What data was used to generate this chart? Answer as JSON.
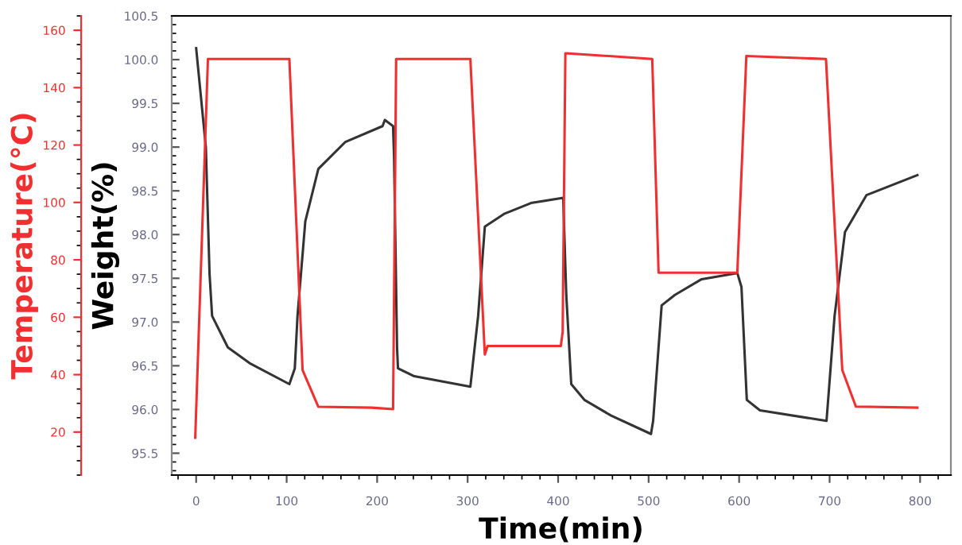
{
  "chart_data": {
    "type": "line",
    "xlabel": "Time(min)",
    "ylabel": "Weight(%)",
    "y2label": "Temperature(°C)",
    "xlim": [
      -27,
      834
    ],
    "xticks": [
      0,
      100,
      200,
      300,
      400,
      500,
      600,
      700,
      800
    ],
    "ylim": [
      95.25,
      100.5
    ],
    "yticks": [
      {
        "value": 95.5,
        "label": "95.5"
      },
      {
        "value": 96.0,
        "label": "96.0"
      },
      {
        "value": 96.5,
        "label": "96.5"
      },
      {
        "value": 97.0,
        "label": "97.0"
      },
      97.5,
      {
        "value": 98.0,
        "label": "98.0"
      },
      98.5,
      {
        "value": 99.0,
        "label": "99.0"
      },
      {
        "value": 99.5,
        "label": "99.5"
      },
      {
        "value": 100.0,
        "label": "100.0"
      },
      {
        "value": 100.5,
        "label": "100.5"
      }
    ],
    "y2lim": [
      5,
      165
    ],
    "y2ticks": [
      20,
      40,
      60,
      80,
      100,
      120,
      140,
      160
    ],
    "grid": false,
    "legend": false,
    "marker": "none",
    "line_style": "solid",
    "series": [
      {
        "color": "#333333",
        "x": [
          0,
          10.7,
          14.8,
          17.6,
          35,
          59,
          103,
          109,
          112,
          120.6,
          135,
          165,
          206,
          208.5,
          217.6,
          218.7,
          222,
          223,
          241,
          303,
          311.6,
          319,
          341,
          370,
          405.6,
          409,
          414.5,
          429,
          458.6,
          502.6,
          505,
          514.4,
          529,
          558.6,
          598,
          602.6,
          608.5,
          623,
          696.6,
          705.5,
          717,
          740.7,
          797
        ],
        "values": [
          100.13,
          99.0,
          97.55,
          97.07,
          96.71,
          96.53,
          96.29,
          96.47,
          97.07,
          98.15,
          98.75,
          99.06,
          99.24,
          99.31,
          99.24,
          98.88,
          96.71,
          96.47,
          96.38,
          96.26,
          97.07,
          98.09,
          98.24,
          98.36,
          98.42,
          97.31,
          96.29,
          96.11,
          95.93,
          95.72,
          95.87,
          97.19,
          97.31,
          97.49,
          97.56,
          97.4,
          96.11,
          95.99,
          95.87,
          97.07,
          98.03,
          98.45,
          98.68
        ]
      },
      {
        "color": "#f03030",
        "axis": "y2",
        "x": [
          -1,
          13,
          103,
          117.6,
          135,
          194,
          217.6,
          221,
          303,
          319,
          322,
          403,
          405,
          408,
          504,
          511,
          598,
          608,
          696,
          714,
          729,
          797
        ],
        "values": [
          18,
          150,
          150,
          41.6,
          28.8,
          28.5,
          28,
          150,
          150,
          47,
          50,
          50,
          55,
          152,
          150,
          75.5,
          75.5,
          151,
          150,
          41.6,
          28.9,
          28.5
        ]
      }
    ]
  }
}
